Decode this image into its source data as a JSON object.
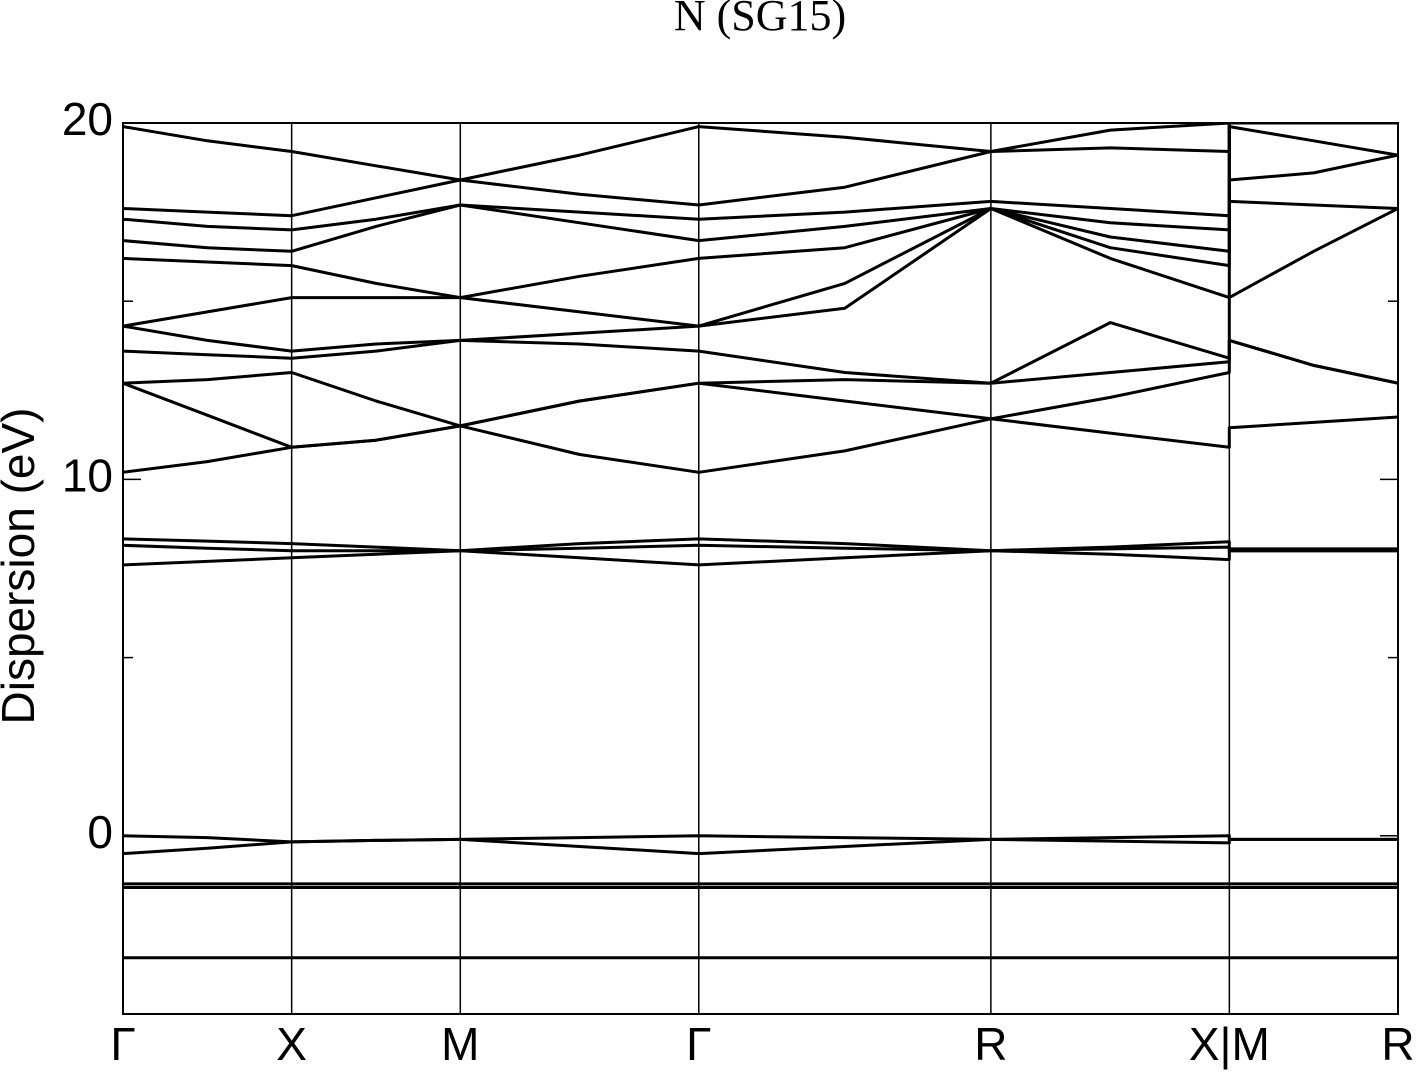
{
  "chart_data": {
    "type": "line",
    "title": "N (SG15)",
    "y_label": "Dispersion (eV)",
    "color": "#000000",
    "xlim": [
      0,
      3.78
    ],
    "ylim": [
      -5,
      20
    ],
    "xticks": [
      {
        "value": 0,
        "label": "Γ"
      },
      {
        "value": 0.5,
        "label": "X"
      },
      {
        "value": 1.0,
        "label": "M"
      },
      {
        "value": 1.707,
        "label": "Γ"
      },
      {
        "value": 2.573,
        "label": "R"
      },
      {
        "value": 3.28,
        "label": "X|M"
      },
      {
        "value": 3.78,
        "label": "R"
      }
    ],
    "yticks": [
      0,
      10,
      20
    ],
    "minor_yticks": [
      5,
      15
    ],
    "grid": true,
    "x": [
      0,
      0.25,
      0.5,
      0.75,
      1.0,
      1.354,
      1.707,
      2.14,
      2.573,
      2.927,
      3.28,
      3.28,
      3.53,
      3.78
    ],
    "series": [
      {
        "values": [
          -3.42,
          -3.42,
          -3.42,
          -3.42,
          -3.42,
          -3.42,
          -3.42,
          -3.42,
          -3.42,
          -3.42,
          -3.42,
          -3.42,
          -3.42,
          -3.42
        ]
      },
      {
        "values": [
          -1.35,
          -1.35,
          -1.35,
          -1.35,
          -1.35,
          -1.35,
          -1.35,
          -1.35,
          -1.35,
          -1.35,
          -1.35,
          -1.35,
          -1.35,
          -1.35
        ]
      },
      {
        "values": [
          -1.45,
          -1.45,
          -1.45,
          -1.45,
          -1.45,
          -1.45,
          -1.45,
          -1.45,
          -1.45,
          -1.45,
          -1.45,
          -1.45,
          -1.45,
          -1.45
        ]
      },
      {
        "values": [
          0,
          -0.05,
          -0.17,
          -0.13,
          -0.1,
          -0.05,
          0,
          -0.05,
          -0.1,
          -0.05,
          0,
          -0.1,
          -0.1,
          -0.1
        ]
      },
      {
        "values": [
          -0.5,
          -0.35,
          -0.17,
          -0.13,
          -0.1,
          -0.3,
          -0.5,
          -0.3,
          -0.1,
          -0.15,
          -0.2,
          -0.1,
          -0.1,
          -0.1
        ]
      },
      {
        "values": [
          8.33,
          8.27,
          8.2,
          8.1,
          8.0,
          8.2,
          8.33,
          8.2,
          8.0,
          8.1,
          8.25,
          8.05,
          8.05,
          8.05
        ]
      },
      {
        "values": [
          8.15,
          8.07,
          8.0,
          8.0,
          8.0,
          8.07,
          8.15,
          8.07,
          8.0,
          8.05,
          8.1,
          8.0,
          8.0,
          8.0
        ]
      },
      {
        "values": [
          7.6,
          7.7,
          7.8,
          7.9,
          8.0,
          7.8,
          7.6,
          7.8,
          8.0,
          7.9,
          7.75,
          8.0,
          8.0,
          8.0
        ]
      },
      {
        "values": [
          10.2,
          10.5,
          10.9,
          11.1,
          11.5,
          10.7,
          10.2,
          10.8,
          11.7,
          11.3,
          10.9,
          11.45,
          11.6,
          11.75
        ]
      },
      {
        "values": [
          12.7,
          11.8,
          10.9,
          11.1,
          11.5,
          12.2,
          12.7,
          12.2,
          11.7,
          12.3,
          13.0,
          13.9,
          13.2,
          12.7
        ]
      },
      {
        "values": [
          12.7,
          12.8,
          13.0,
          12.2,
          11.5,
          12.2,
          12.7,
          12.8,
          12.7,
          13.0,
          13.3,
          13.9,
          13.2,
          12.7
        ]
      },
      {
        "values": [
          13.6,
          13.5,
          13.4,
          13.6,
          13.9,
          13.8,
          13.6,
          13.0,
          12.7,
          14.4,
          13.4,
          15.1,
          16.4,
          17.6
        ]
      },
      {
        "values": [
          14.3,
          13.9,
          13.6,
          13.8,
          13.9,
          14.1,
          14.3,
          14.8,
          17.6,
          16.2,
          15.1,
          17.8,
          17.7,
          17.6
        ]
      },
      {
        "values": [
          14.3,
          14.7,
          15.1,
          15.1,
          15.1,
          14.7,
          14.3,
          15.5,
          17.6,
          16.5,
          16.0,
          18.4,
          18.6,
          19.1
        ]
      },
      {
        "values": [
          16.2,
          16.1,
          16.0,
          15.5,
          15.1,
          15.7,
          16.2,
          16.5,
          17.6,
          16.8,
          16.4,
          19.9,
          19.5,
          19.1
        ]
      },
      {
        "values": [
          16.7,
          16.5,
          16.4,
          17.1,
          17.7,
          17.2,
          16.7,
          17.1,
          17.6,
          17.2,
          17.0,
          20,
          20,
          20
        ]
      },
      {
        "values": [
          17.3,
          17.1,
          17.0,
          17.3,
          17.7,
          17.5,
          17.3,
          17.5,
          17.8,
          17.6,
          17.4,
          20,
          20,
          20
        ]
      },
      {
        "values": [
          17.6,
          17.5,
          17.4,
          17.9,
          18.4,
          18.0,
          17.7,
          18.2,
          19.2,
          19.3,
          19.2,
          20,
          20,
          20
        ]
      },
      {
        "values": [
          19.9,
          19.5,
          19.2,
          18.8,
          18.4,
          19.1,
          19.9,
          19.6,
          19.2,
          19.8,
          20,
          20,
          20,
          20
        ]
      }
    ]
  }
}
